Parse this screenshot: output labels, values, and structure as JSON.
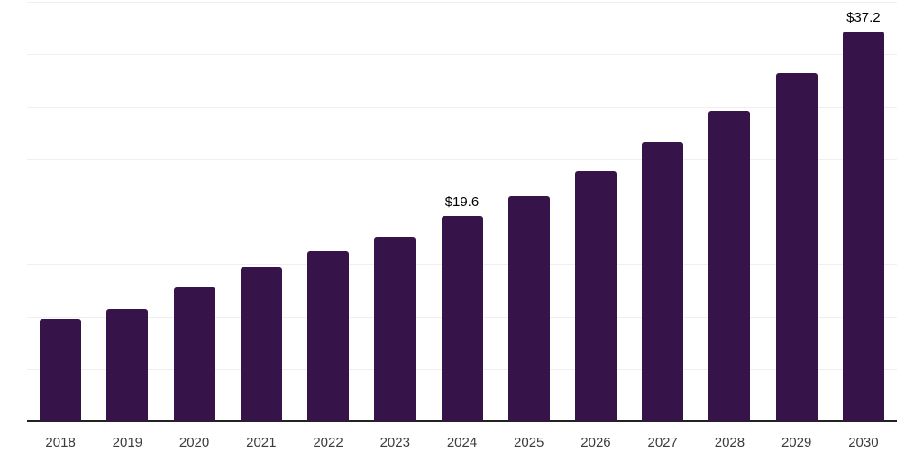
{
  "chart_data": {
    "type": "bar",
    "title": "",
    "xlabel": "",
    "ylabel": "",
    "categories": [
      "2018",
      "2019",
      "2020",
      "2021",
      "2022",
      "2023",
      "2024",
      "2025",
      "2026",
      "2027",
      "2028",
      "2029",
      "2030"
    ],
    "values": [
      9.8,
      10.7,
      12.8,
      14.7,
      16.2,
      17.6,
      19.6,
      21.5,
      23.9,
      26.6,
      29.6,
      33.2,
      37.2
    ],
    "data_labels": [
      "",
      "",
      "",
      "",
      "",
      "",
      "$19.6",
      "",
      "",
      "",
      "",
      "",
      "$37.2"
    ],
    "ylim": [
      0,
      40
    ],
    "gridline_step": 5,
    "grid": "horizontal",
    "legend": "none",
    "y_axis_tick_labels_visible": false,
    "colors": {
      "bar": "#361449",
      "axis_line": "#222222",
      "gridline": "#efefef",
      "tick_label": "#3d3d3d",
      "data_label": "#000000",
      "background": "#ffffff"
    }
  }
}
